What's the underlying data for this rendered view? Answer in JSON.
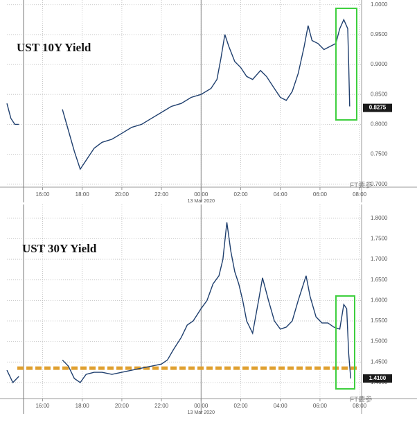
{
  "chart_data": [
    {
      "type": "line",
      "title": "UST 10Y Yield",
      "date_label": "13 Mar 2020",
      "xlim": [
        14.2,
        32.1
      ],
      "ylim": [
        0.695,
        1.002
      ],
      "xticks": [
        {
          "value": 16,
          "label": "16:00"
        },
        {
          "value": 18,
          "label": "18:00"
        },
        {
          "value": 20,
          "label": "20:00"
        },
        {
          "value": 22,
          "label": "22:00"
        },
        {
          "value": 24,
          "label": "00:00"
        },
        {
          "value": 26,
          "label": "02:00"
        },
        {
          "value": 28,
          "label": "04:00"
        },
        {
          "value": 30,
          "label": "06:00"
        },
        {
          "value": 32,
          "label": "08:00"
        }
      ],
      "yticks": [
        {
          "value": 0.7,
          "label": "0.7000"
        },
        {
          "value": 0.75,
          "label": "0.7500"
        },
        {
          "value": 0.8,
          "label": "0.8000"
        },
        {
          "value": 0.85,
          "label": "0.8500"
        },
        {
          "value": 0.9,
          "label": "0.9000"
        },
        {
          "value": 0.95,
          "label": "0.9500"
        },
        {
          "value": 1.0,
          "label": "1.0000"
        }
      ],
      "grid": true,
      "last_value": 0.8275,
      "series": [
        {
          "color": "#1f3f6e",
          "x": [
            14.2,
            14.4,
            14.6,
            14.8,
            null,
            17.0,
            17.3,
            17.6,
            17.9,
            18.2,
            18.6,
            19.0,
            19.5,
            20.0,
            20.5,
            21.0,
            21.5,
            22.0,
            22.5,
            23.0,
            23.5,
            24.0,
            24.5,
            24.8,
            25.0,
            25.2,
            25.4,
            25.7,
            26.0,
            26.3,
            26.6,
            27.0,
            27.3,
            27.7,
            28.0,
            28.3,
            28.6,
            28.9,
            29.2,
            29.4,
            29.6,
            29.9,
            30.2,
            30.5,
            30.8,
            31.0,
            31.2,
            31.4,
            31.45,
            31.5
          ],
          "values": [
            0.835,
            0.81,
            0.8,
            0.8,
            null,
            0.825,
            0.79,
            0.755,
            0.725,
            0.74,
            0.76,
            0.77,
            0.775,
            0.785,
            0.795,
            0.8,
            0.81,
            0.82,
            0.83,
            0.835,
            0.845,
            0.85,
            0.86,
            0.875,
            0.91,
            0.95,
            0.93,
            0.905,
            0.895,
            0.88,
            0.875,
            0.89,
            0.88,
            0.86,
            0.845,
            0.84,
            0.855,
            0.885,
            0.93,
            0.965,
            0.94,
            0.935,
            0.925,
            0.93,
            0.935,
            0.96,
            0.975,
            0.96,
            0.9,
            0.83
          ]
        }
      ]
    },
    {
      "type": "line",
      "title": "UST 30Y Yield",
      "date_label": "13 Mar 2020",
      "xlim": [
        14.2,
        32.1
      ],
      "ylim": [
        1.361,
        1.825
      ],
      "xticks": [
        {
          "value": 16,
          "label": "16:00"
        },
        {
          "value": 18,
          "label": "18:00"
        },
        {
          "value": 20,
          "label": "20:00"
        },
        {
          "value": 22,
          "label": "22:00"
        },
        {
          "value": 24,
          "label": "00:00"
        },
        {
          "value": 26,
          "label": "02:00"
        },
        {
          "value": 28,
          "label": "04:00"
        },
        {
          "value": 30,
          "label": "06:00"
        },
        {
          "value": 32,
          "label": "08:00"
        }
      ],
      "yticks": [
        {
          "value": 1.4,
          "label": "1.4000"
        },
        {
          "value": 1.45,
          "label": "1.4500"
        },
        {
          "value": 1.5,
          "label": "1.5000"
        },
        {
          "value": 1.55,
          "label": "1.5500"
        },
        {
          "value": 1.6,
          "label": "1.6000"
        },
        {
          "value": 1.65,
          "label": "1.6500"
        },
        {
          "value": 1.7,
          "label": "1.7000"
        },
        {
          "value": 1.75,
          "label": "1.7500"
        },
        {
          "value": 1.8,
          "label": "1.8000"
        }
      ],
      "grid": true,
      "last_value": {
        "value": 1.41,
        "label": "1.4100"
      },
      "reference_line": {
        "value": 1.435,
        "color": "#e0a030"
      },
      "series": [
        {
          "color": "#1f3f6e",
          "x": [
            14.2,
            14.5,
            14.8,
            null,
            17.0,
            17.3,
            17.6,
            17.9,
            18.2,
            18.6,
            19.0,
            19.5,
            20.0,
            20.5,
            21.0,
            21.5,
            22.0,
            22.3,
            22.6,
            23.0,
            23.3,
            23.6,
            24.0,
            24.3,
            24.6,
            24.9,
            25.1,
            25.3,
            25.5,
            25.7,
            25.9,
            26.1,
            26.3,
            26.6,
            26.9,
            27.1,
            27.4,
            27.7,
            28.0,
            28.3,
            28.6,
            28.9,
            29.1,
            29.3,
            29.5,
            29.8,
            30.1,
            30.4,
            30.7,
            31.0,
            31.2,
            31.35,
            31.45,
            31.55
          ],
          "values": [
            1.43,
            1.4,
            1.415,
            null,
            1.455,
            1.44,
            1.41,
            1.4,
            1.42,
            1.425,
            1.425,
            1.42,
            1.425,
            1.43,
            1.435,
            1.44,
            1.445,
            1.455,
            1.48,
            1.51,
            1.54,
            1.55,
            1.58,
            1.6,
            1.64,
            1.66,
            1.7,
            1.79,
            1.72,
            1.67,
            1.64,
            1.6,
            1.55,
            1.52,
            1.6,
            1.655,
            1.6,
            1.55,
            1.53,
            1.535,
            1.55,
            1.6,
            1.63,
            1.66,
            1.61,
            1.56,
            1.545,
            1.545,
            1.535,
            1.53,
            1.59,
            1.58,
            1.47,
            1.41
          ]
        }
      ]
    }
  ],
  "watermark": "FT要参"
}
